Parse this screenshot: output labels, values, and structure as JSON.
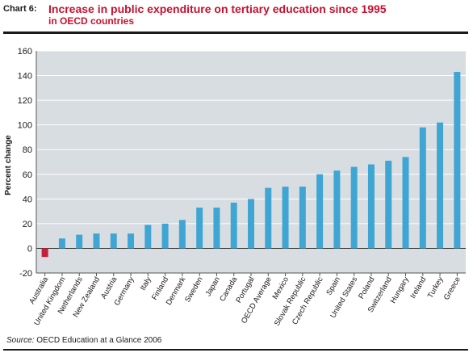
{
  "header": {
    "chart_label": "Chart 6:",
    "title": "Increase in public expenditure on tertiary education since 1995",
    "subtitle": "in OECD countries"
  },
  "footer": {
    "source_label": "Source:",
    "source_text": " OECD Education at a Glance 2006"
  },
  "colors": {
    "positive_bar": "#3fa6d4",
    "negative_bar": "#c8203c",
    "plot_background": "#d8dde2",
    "gridline": "#ffffff",
    "title": "#c8102e"
  },
  "chart_data": {
    "type": "bar",
    "title": "Increase in public expenditure on tertiary education since 1995",
    "ylabel": "Percent change",
    "xlabel": "",
    "ylim": [
      -20,
      160
    ],
    "yticks": [
      -20,
      0,
      20,
      40,
      60,
      80,
      100,
      120,
      140,
      160
    ],
    "grid": true,
    "categories": [
      "Australia",
      "United Kingdom",
      "Netherlands",
      "New Zealand",
      "Austria",
      "Germany",
      "Italy",
      "Finland",
      "Denmark",
      "Sweden",
      "Japan",
      "Canada",
      "Portugal",
      "OECD Average",
      "Mexico",
      "Slovak Republic",
      "Czech Republic",
      "Spain",
      "United States",
      "Poland",
      "Switzerland",
      "Hungary",
      "Ireland",
      "Turkey",
      "Greece"
    ],
    "values": [
      -7,
      8,
      11,
      12,
      12,
      12,
      19,
      20,
      23,
      33,
      33,
      37,
      40,
      49,
      50,
      50,
      60,
      63,
      66,
      68,
      71,
      74,
      98,
      102,
      143
    ]
  }
}
